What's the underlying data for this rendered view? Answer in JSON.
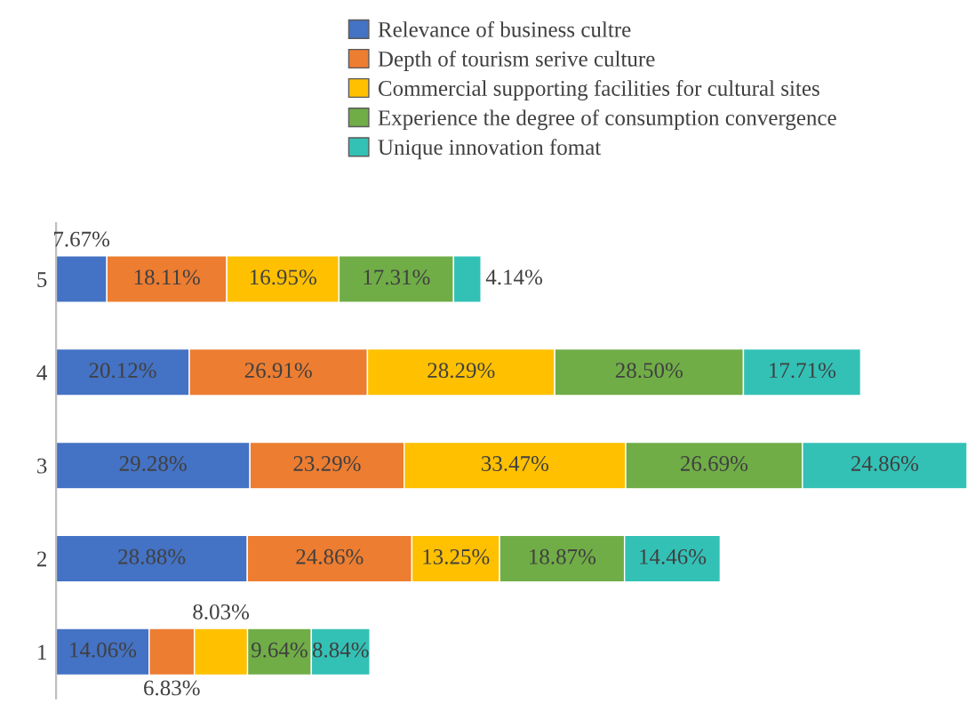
{
  "chart_data": {
    "type": "bar",
    "orientation": "horizontal",
    "stacked": true,
    "categories": [
      "5",
      "4",
      "3",
      "2",
      "1"
    ],
    "series": [
      {
        "name": "Relevance of business cultre",
        "color": "#4472c4",
        "values": [
          7.67,
          20.12,
          29.28,
          28.88,
          14.06
        ],
        "value_labels": [
          "7.67%",
          "20.12%",
          "29.28%",
          "28.88%",
          "14.06%"
        ]
      },
      {
        "name": "Depth of tourism serive culture",
        "color": "#ed7d31",
        "values": [
          18.11,
          26.91,
          23.29,
          24.86,
          6.83
        ],
        "value_labels": [
          "18.11%",
          "26.91%",
          "23.29%",
          "24.86%",
          "6.83%"
        ]
      },
      {
        "name": "Commercial supporting facilities for cultural sites",
        "color": "#ffc000",
        "values": [
          16.95,
          28.29,
          33.47,
          13.25,
          8.03
        ],
        "value_labels": [
          "16.95%",
          "28.29%",
          "33.47%",
          "13.25%",
          "8.03%"
        ]
      },
      {
        "name": "Experience the degree of consumption convergence",
        "color": "#70ad47",
        "values": [
          17.31,
          28.5,
          26.69,
          18.87,
          9.64
        ],
        "value_labels": [
          "17.31%",
          "28.50%",
          "26.69%",
          "18.87%",
          "9.64%"
        ]
      },
      {
        "name": "Unique innovation fomat",
        "color": "#33c1b6",
        "values": [
          4.14,
          17.71,
          24.86,
          14.46,
          8.84
        ],
        "value_labels": [
          "4.14%",
          "17.71%",
          "24.86%",
          "14.46%",
          "8.84%"
        ]
      }
    ],
    "legend": "top",
    "grid": false,
    "tick_labels": "y"
  }
}
